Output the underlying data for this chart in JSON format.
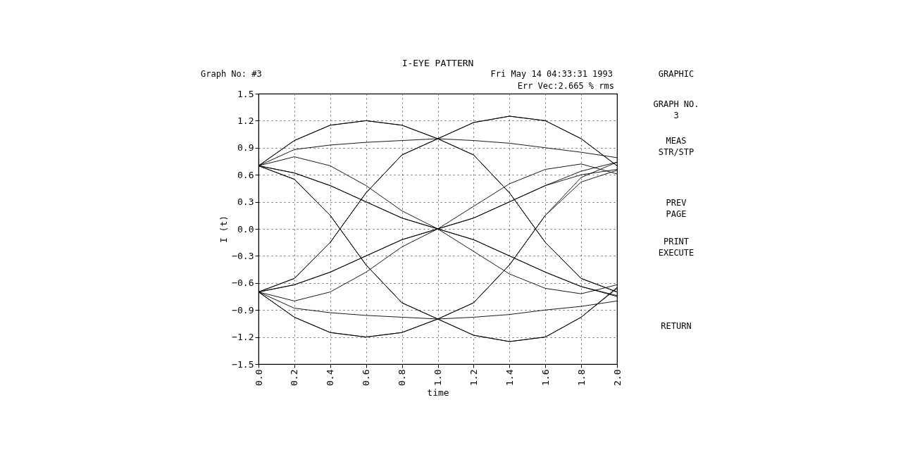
{
  "chart_data": {
    "type": "line",
    "title": "I-EYE PATTERN",
    "xlabel": "time",
    "ylabel": "I (t)",
    "x": [
      0,
      0.2,
      0.4,
      0.6,
      0.8,
      1.0,
      1.2,
      1.4,
      1.6,
      1.8,
      2.0
    ],
    "series": [
      {
        "color": "#000000",
        "values": [
          0.7,
          0.98,
          1.15,
          1.2,
          1.15,
          1.0,
          1.18,
          1.25,
          1.2,
          1.0,
          0.7
        ]
      },
      {
        "color": "#000000",
        "values": [
          0.7,
          0.98,
          1.15,
          1.2,
          1.15,
          1.0,
          0.82,
          0.4,
          -0.15,
          -0.55,
          -0.7
        ]
      },
      {
        "color": "#000000",
        "values": [
          0.7,
          0.62,
          0.48,
          0.3,
          0.12,
          0.0,
          0.12,
          0.3,
          0.48,
          0.64,
          0.74
        ]
      },
      {
        "color": "#000000",
        "values": [
          0.7,
          0.62,
          0.48,
          0.3,
          0.12,
          0.0,
          -0.12,
          -0.3,
          -0.48,
          -0.64,
          -0.74
        ]
      },
      {
        "color": "#000000",
        "values": [
          0.7,
          0.55,
          0.15,
          -0.4,
          -0.82,
          -1.0,
          -0.82,
          -0.4,
          0.15,
          0.52,
          0.65
        ]
      },
      {
        "color": "#000000",
        "values": [
          0.7,
          0.55,
          0.15,
          -0.4,
          -0.82,
          -1.0,
          -1.18,
          -1.25,
          -1.2,
          -0.98,
          -0.66
        ]
      },
      {
        "color": "#000000",
        "values": [
          -0.7,
          -0.55,
          -0.15,
          0.4,
          0.82,
          1.0,
          1.18,
          1.25,
          1.2,
          1.0,
          0.7
        ]
      },
      {
        "color": "#000000",
        "values": [
          -0.7,
          -0.55,
          -0.15,
          0.4,
          0.82,
          1.0,
          0.82,
          0.4,
          -0.15,
          -0.55,
          -0.7
        ]
      },
      {
        "color": "#000000",
        "values": [
          -0.7,
          -0.62,
          -0.48,
          -0.3,
          -0.12,
          0.0,
          0.12,
          0.3,
          0.48,
          0.6,
          0.66
        ]
      },
      {
        "color": "#000000",
        "values": [
          -0.7,
          -0.62,
          -0.48,
          -0.3,
          -0.12,
          0.0,
          -0.12,
          -0.3,
          -0.48,
          -0.64,
          -0.75
        ]
      },
      {
        "color": "#000000",
        "values": [
          -0.7,
          -0.98,
          -1.15,
          -1.2,
          -1.15,
          -1.0,
          -0.82,
          -0.4,
          0.15,
          0.57,
          0.74
        ]
      },
      {
        "color": "#000000",
        "values": [
          -0.7,
          -0.98,
          -1.15,
          -1.2,
          -1.15,
          -1.0,
          -1.18,
          -1.25,
          -1.2,
          -0.98,
          -0.65
        ]
      },
      {
        "color": "#000000",
        "values": [
          0.7,
          0.8,
          0.7,
          0.48,
          0.2,
          0.0,
          0.25,
          0.5,
          0.66,
          0.72,
          0.61
        ]
      },
      {
        "color": "#000000",
        "values": [
          -0.7,
          -0.8,
          -0.7,
          -0.48,
          -0.2,
          0.0,
          -0.25,
          -0.5,
          -0.66,
          -0.72,
          -0.62
        ]
      },
      {
        "color": "#000000",
        "values": [
          0.7,
          0.88,
          0.93,
          0.96,
          0.98,
          1.0,
          0.98,
          0.95,
          0.9,
          0.85,
          0.79
        ]
      },
      {
        "color": "#000000",
        "values": [
          -0.7,
          -0.88,
          -0.93,
          -0.96,
          -0.98,
          -1.0,
          -0.98,
          -0.95,
          -0.9,
          -0.86,
          -0.8
        ]
      }
    ],
    "xlim": [
      0,
      2.0
    ],
    "xticks": [
      {
        "value": 0,
        "label": "0.0"
      },
      0.2,
      0.4,
      0.6,
      0.8,
      {
        "value": 1.0,
        "label": "1.0"
      },
      1.2,
      1.4,
      1.6,
      1.8,
      {
        "value": 2.0,
        "label": "2.0"
      }
    ],
    "ylim": [
      -1.5,
      1.5
    ],
    "yticks": [
      -1.5,
      -1.2,
      -0.9,
      -0.6,
      -0.3,
      {
        "value": 0,
        "label": "0.0"
      },
      0.3,
      0.6,
      0.9,
      1.2,
      1.5
    ],
    "grid": true,
    "legend": false,
    "marker": "none",
    "line_style": "solid",
    "annotations": [
      "Graph No: #3",
      "Fri May 14 04:33:31 1993",
      "Err Vec:2.665 % rms",
      "GRAPHIC",
      "GRAPH NO.\n3",
      "MEAS\nSTR/STP",
      "PREV\nPAGE",
      "PRINT\nEXECUTE",
      "RETURN"
    ]
  }
}
